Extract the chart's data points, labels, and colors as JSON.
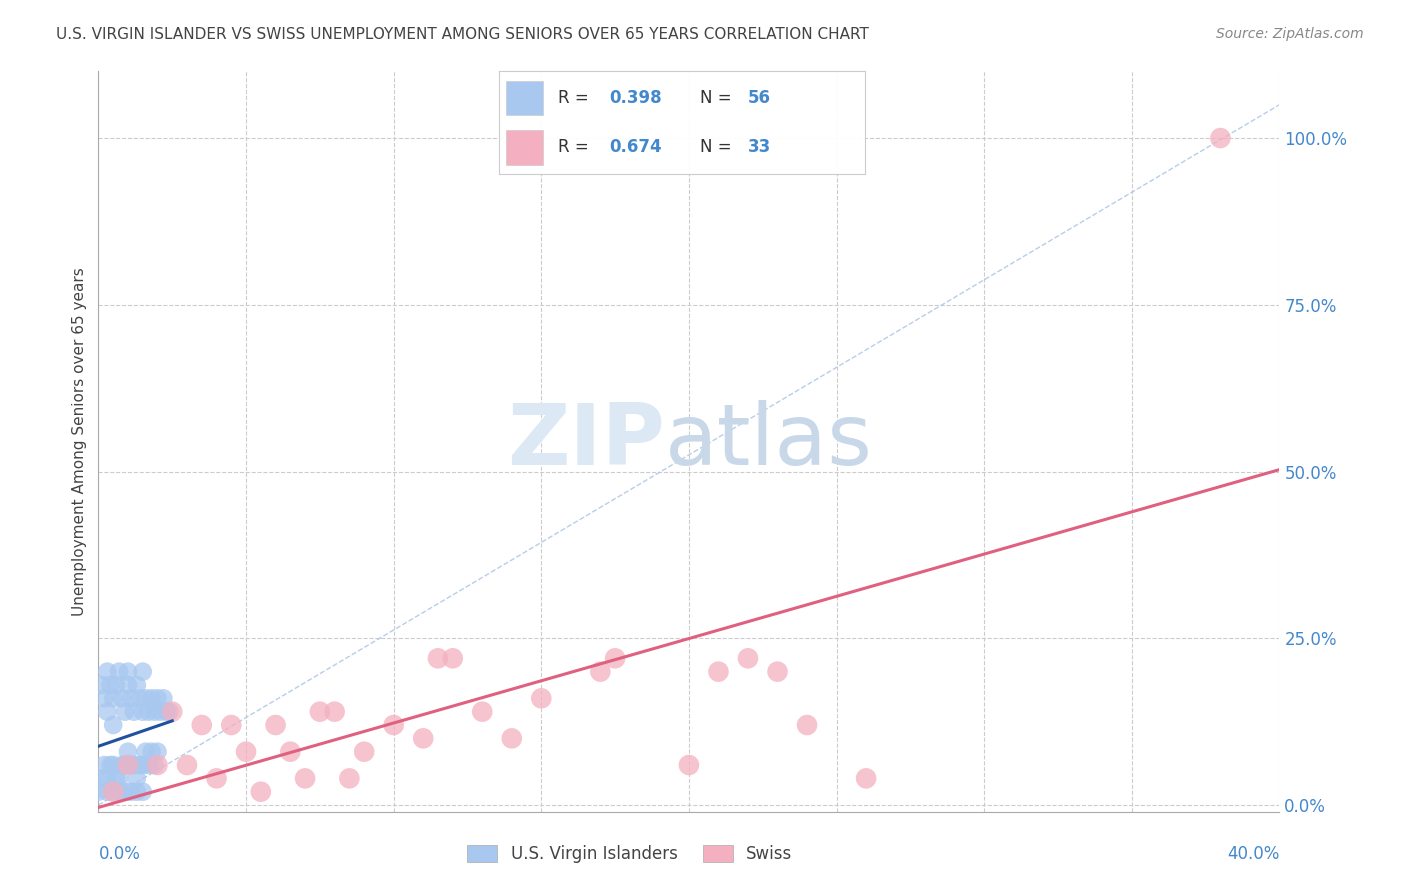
{
  "title": "U.S. VIRGIN ISLANDER VS SWISS UNEMPLOYMENT AMONG SENIORS OVER 65 YEARS CORRELATION CHART",
  "source": "Source: ZipAtlas.com",
  "ylabel": "Unemployment Among Seniors over 65 years",
  "blue_label": "U.S. Virgin Islanders",
  "pink_label": "Swiss",
  "blue_R": 0.398,
  "blue_N": 56,
  "pink_R": 0.674,
  "pink_N": 33,
  "xmin": 0.0,
  "xmax": 0.4,
  "ymin": -0.01,
  "ymax": 1.1,
  "right_yticks": [
    0.0,
    0.25,
    0.5,
    0.75,
    1.0
  ],
  "right_yticklabels": [
    "0.0%",
    "25.0%",
    "50.0%",
    "75.0%",
    "100.0%"
  ],
  "background_color": "#ffffff",
  "grid_color": "#cccccc",
  "blue_color": "#a8c8f0",
  "pink_color": "#f4b0c0",
  "blue_line_color": "#2050a0",
  "pink_line_color": "#e06080",
  "diag_color": "#b0c8e8",
  "title_color": "#444444",
  "axis_label_color": "#4488cc",
  "legend_value_color": "#4488cc",
  "legend_text_color": "#333333",
  "blue_dots_x": [
    0.0,
    0.001,
    0.002,
    0.003,
    0.003,
    0.004,
    0.005,
    0.005,
    0.006,
    0.007,
    0.008,
    0.009,
    0.01,
    0.01,
    0.011,
    0.012,
    0.013,
    0.014,
    0.015,
    0.015,
    0.016,
    0.017,
    0.018,
    0.019,
    0.02,
    0.021,
    0.022,
    0.023,
    0.024,
    0.001,
    0.002,
    0.003,
    0.004,
    0.005,
    0.006,
    0.007,
    0.008,
    0.009,
    0.01,
    0.011,
    0.012,
    0.013,
    0.014,
    0.015,
    0.016,
    0.017,
    0.018,
    0.019,
    0.02,
    0.003,
    0.005,
    0.007,
    0.009,
    0.011,
    0.013,
    0.015
  ],
  "blue_dots_y": [
    0.02,
    0.18,
    0.16,
    0.2,
    0.14,
    0.18,
    0.16,
    0.12,
    0.18,
    0.2,
    0.16,
    0.14,
    0.18,
    0.2,
    0.16,
    0.14,
    0.18,
    0.16,
    0.14,
    0.2,
    0.16,
    0.14,
    0.16,
    0.14,
    0.16,
    0.14,
    0.16,
    0.14,
    0.14,
    0.04,
    0.06,
    0.04,
    0.06,
    0.06,
    0.04,
    0.04,
    0.06,
    0.06,
    0.08,
    0.06,
    0.06,
    0.04,
    0.06,
    0.06,
    0.08,
    0.06,
    0.08,
    0.06,
    0.08,
    0.02,
    0.02,
    0.02,
    0.02,
    0.02,
    0.02,
    0.02
  ],
  "pink_dots_x": [
    0.005,
    0.01,
    0.02,
    0.025,
    0.03,
    0.035,
    0.04,
    0.045,
    0.05,
    0.055,
    0.06,
    0.065,
    0.07,
    0.075,
    0.08,
    0.085,
    0.09,
    0.1,
    0.11,
    0.115,
    0.12,
    0.13,
    0.14,
    0.15,
    0.17,
    0.175,
    0.2,
    0.21,
    0.22,
    0.23,
    0.24,
    0.26,
    0.38
  ],
  "pink_dots_y": [
    0.02,
    0.06,
    0.06,
    0.14,
    0.06,
    0.12,
    0.04,
    0.12,
    0.08,
    0.02,
    0.12,
    0.08,
    0.04,
    0.14,
    0.14,
    0.04,
    0.08,
    0.12,
    0.1,
    0.22,
    0.22,
    0.14,
    0.1,
    0.16,
    0.2,
    0.22,
    0.06,
    0.2,
    0.22,
    0.2,
    0.12,
    0.04,
    1.0
  ],
  "watermark_zip": "ZIP",
  "watermark_atlas": "atlas",
  "watermark_color": "#dce8f4"
}
